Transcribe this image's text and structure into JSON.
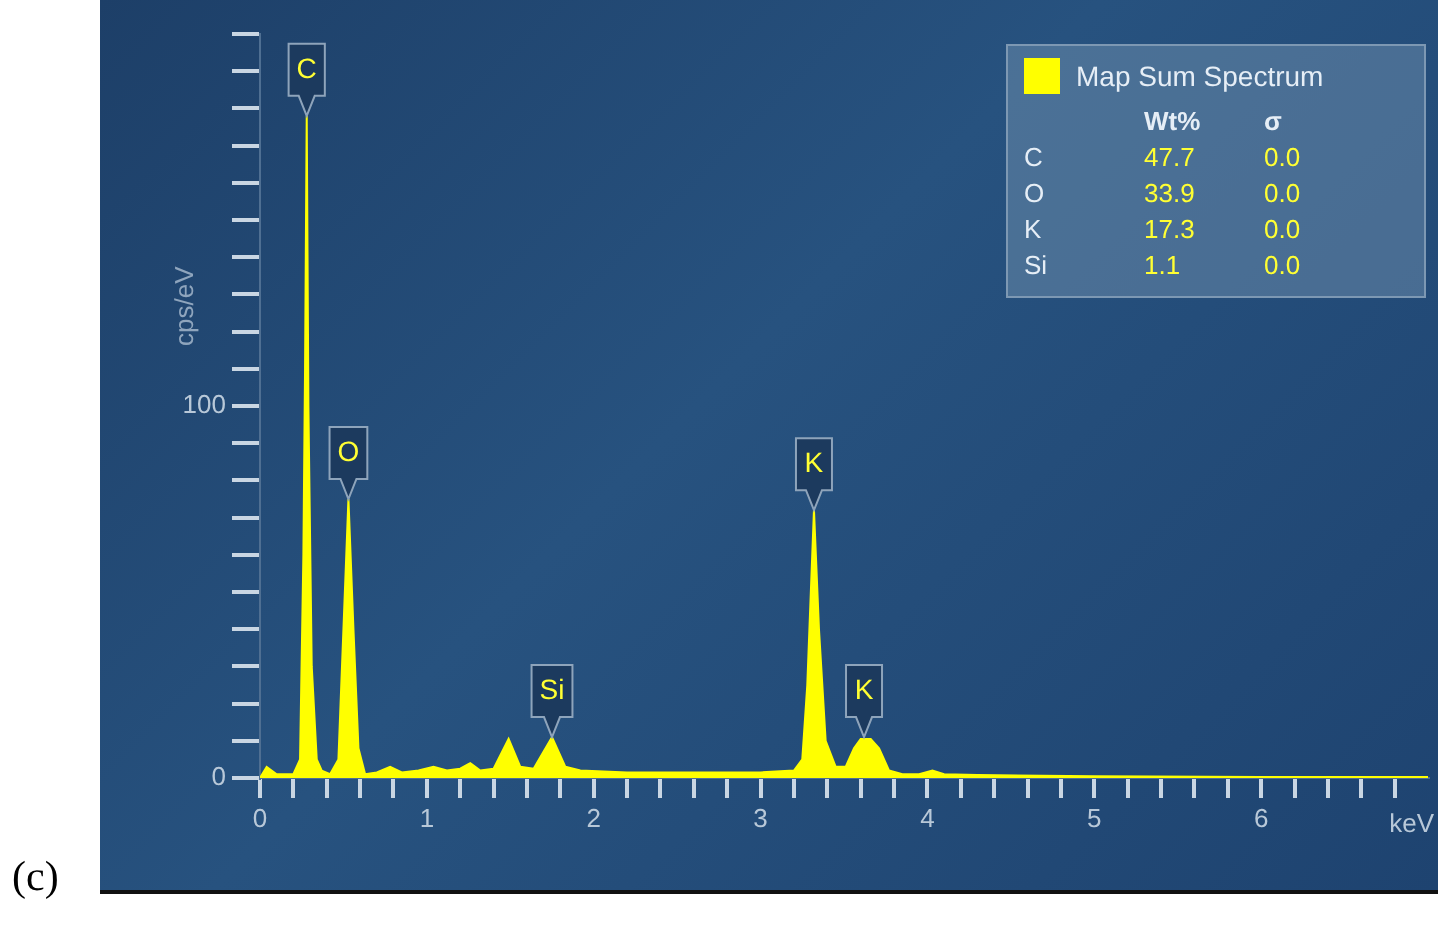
{
  "chart_data": {
    "type": "area",
    "ylabel": "cps/eV",
    "xlabel": "keV",
    "legend": "top right",
    "grid": false,
    "marker": "none",
    "xlim": [
      0,
      7
    ],
    "ylim": [
      0,
      200
    ],
    "xticks": [
      0,
      {
        "value": 0.2,
        "label": null
      },
      {
        "value": 0.4,
        "label": null
      },
      {
        "value": 0.6,
        "label": null
      },
      {
        "value": 0.8,
        "label": null
      },
      1,
      {
        "value": 1.2,
        "label": null
      },
      {
        "value": 1.4,
        "label": null
      },
      {
        "value": 1.6,
        "label": null
      },
      {
        "value": 1.8,
        "label": null
      },
      2,
      {
        "value": 2.2,
        "label": null
      },
      {
        "value": 2.4,
        "label": null
      },
      {
        "value": 2.6,
        "label": null
      },
      {
        "value": 2.8,
        "label": null
      },
      3,
      {
        "value": 3.2,
        "label": null
      },
      {
        "value": 3.4,
        "label": null
      },
      {
        "value": 3.6,
        "label": null
      },
      {
        "value": 3.8,
        "label": null
      },
      4,
      {
        "value": 4.2,
        "label": null
      },
      {
        "value": 4.4,
        "label": null
      },
      {
        "value": 4.6,
        "label": null
      },
      {
        "value": 4.8,
        "label": null
      },
      5,
      {
        "value": 5.2,
        "label": null
      },
      {
        "value": 5.4,
        "label": null
      },
      {
        "value": 5.6,
        "label": null
      },
      {
        "value": 5.8,
        "label": null
      },
      6,
      {
        "value": 6.2,
        "label": null
      },
      {
        "value": 6.4,
        "label": null
      },
      {
        "value": 6.6,
        "label": null
      },
      {
        "value": 6.8,
        "label": null
      }
    ],
    "yticks": [
      0,
      {
        "value": 10,
        "label": null
      },
      {
        "value": 20,
        "label": null
      },
      {
        "value": 30,
        "label": null
      },
      {
        "value": 40,
        "label": null
      },
      {
        "value": 50,
        "label": null
      },
      {
        "value": 60,
        "label": null
      },
      {
        "value": 70,
        "label": null
      },
      {
        "value": 80,
        "label": null
      },
      {
        "value": 90,
        "label": null
      },
      100,
      {
        "value": 110,
        "label": null
      },
      {
        "value": 120,
        "label": null
      },
      {
        "value": 130,
        "label": null
      },
      {
        "value": 140,
        "label": null
      },
      {
        "value": 150,
        "label": null
      },
      {
        "value": 160,
        "label": null
      },
      {
        "value": 170,
        "label": null
      },
      {
        "value": 180,
        "label": null
      },
      {
        "value": 190,
        "label": null
      },
      {
        "value": 200,
        "label": null
      }
    ],
    "series": [
      {
        "name": "Map Sum Spectrum",
        "color": "#ffff00",
        "x": [
          0,
          0.04,
          0.1,
          0.15,
          0.2,
          0.24,
          0.26,
          0.27,
          0.28,
          0.29,
          0.31,
          0.34,
          0.37,
          0.42,
          0.47,
          0.5,
          0.53,
          0.56,
          0.59,
          0.63,
          0.7,
          0.78,
          0.85,
          0.95,
          1.04,
          1.12,
          1.2,
          1.26,
          1.32,
          1.4,
          1.49,
          1.56,
          1.64,
          1.75,
          1.83,
          1.92,
          2.2,
          2.5,
          3.0,
          3.2,
          3.25,
          3.28,
          3.32,
          3.35,
          3.39,
          3.45,
          3.51,
          3.56,
          3.6,
          3.66,
          3.71,
          3.77,
          3.85,
          3.95,
          4.03,
          4.1,
          4.3,
          5,
          6,
          7
        ],
        "values": [
          0,
          3,
          1,
          1,
          1,
          5,
          60,
          110,
          178,
          100,
          30,
          5,
          2,
          1,
          5,
          40,
          75,
          40,
          8,
          1,
          1.5,
          3,
          1.5,
          2,
          3,
          2,
          2.5,
          4,
          2,
          2.5,
          10.5,
          3,
          2.5,
          11,
          3,
          2,
          1.5,
          1.5,
          1.5,
          2,
          5,
          25,
          72,
          40,
          10,
          3,
          3,
          8,
          10.5,
          10.5,
          8,
          2,
          1,
          1,
          2,
          1,
          0.8,
          0.5,
          0.3,
          0.3
        ]
      }
    ],
    "annotations": [
      {
        "text": "C",
        "x": 0.28,
        "y": 178
      },
      {
        "text": "O",
        "x": 0.53,
        "y": 75
      },
      {
        "text": "Si",
        "x": 1.75,
        "y": 11
      },
      {
        "text": "K",
        "x": 3.32,
        "y": 72
      },
      {
        "text": "K",
        "x": 3.62,
        "y": 11
      },
      "(c)",
      "Wt%",
      "σ",
      "C",
      "47.7",
      "0.0",
      "O",
      "33.9",
      "0.0",
      "K",
      "17.3",
      "0.0",
      "Si",
      "1.1",
      "0.0"
    ]
  }
}
